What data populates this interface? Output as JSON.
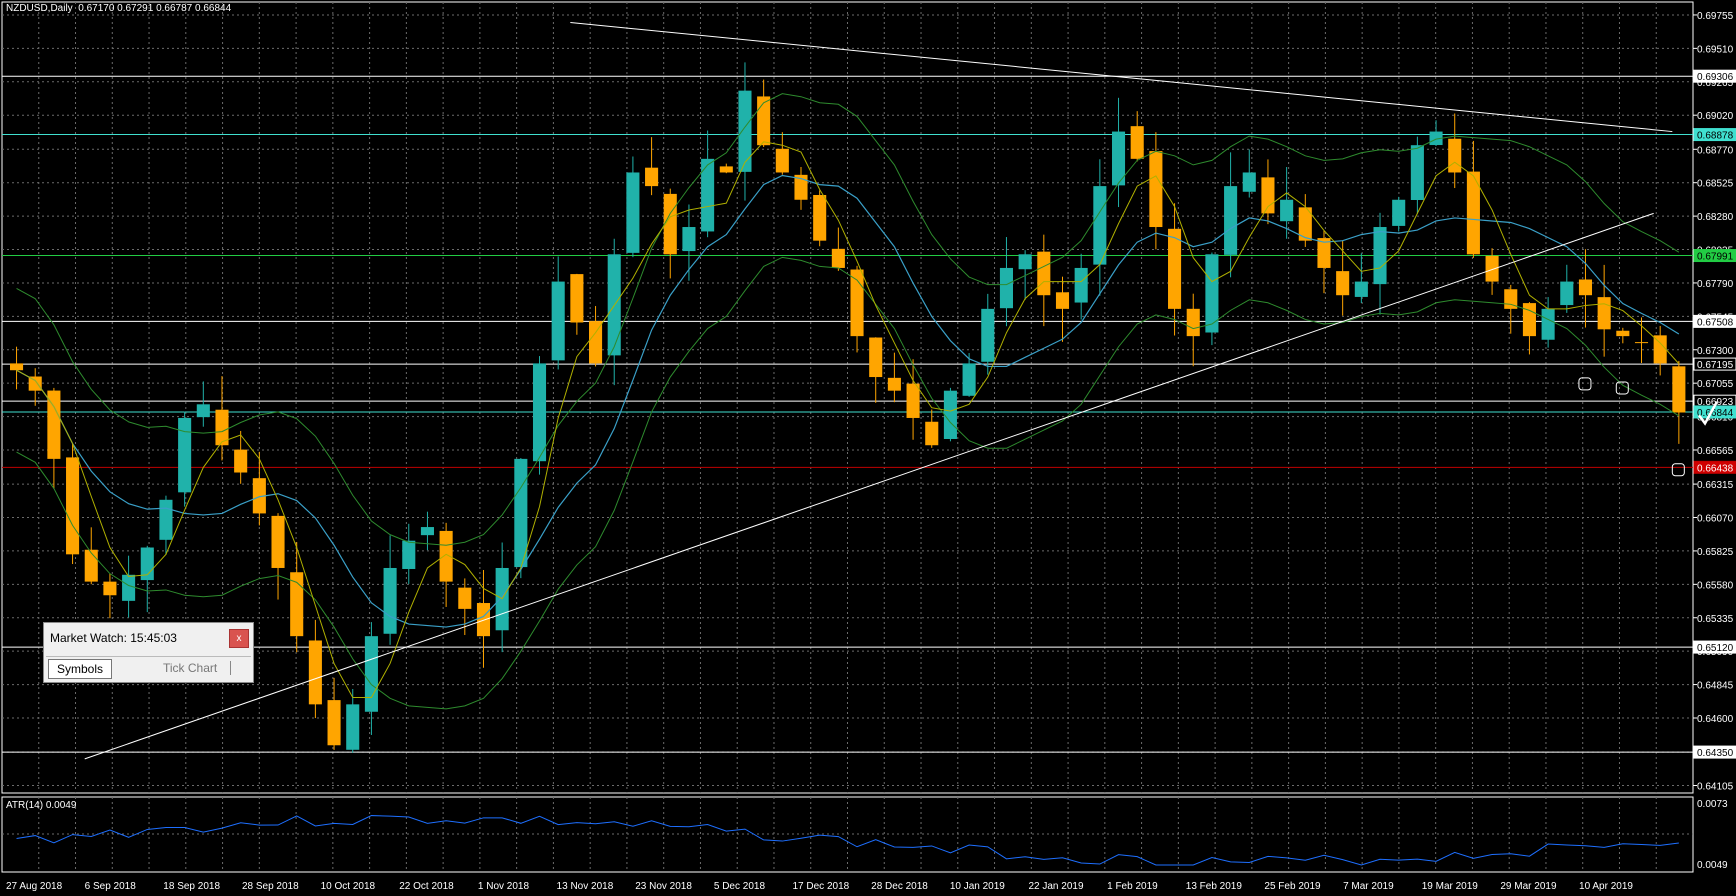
{
  "header": {
    "symbol": "NZDUSD,Daily",
    "ohlc": "0.67170 0.67291 0.66787 0.66844"
  },
  "price_axis": {
    "ticks": [
      "0.69755",
      "0.69510",
      "0.69265",
      "0.69020",
      "0.68770",
      "0.68525",
      "0.68280",
      "0.68035",
      "0.67790",
      "0.67545",
      "0.67300",
      "0.67055",
      "0.66810",
      "0.66565",
      "0.66315",
      "0.66070",
      "0.65825",
      "0.65580",
      "0.65335",
      "0.65090",
      "0.64845",
      "0.64600",
      "0.64350",
      "0.64105"
    ],
    "level_tags": [
      {
        "value": "0.69306",
        "price": 0.69306,
        "style": "white"
      },
      {
        "value": "0.68878",
        "price": 0.68878,
        "style": "aqua"
      },
      {
        "value": "0.67991",
        "price": 0.67991,
        "style": "green"
      },
      {
        "value": "0.67508",
        "price": 0.67508,
        "style": "white"
      },
      {
        "value": "0.67195",
        "price": 0.67195,
        "style": "plain"
      },
      {
        "value": "0.66923",
        "price": 0.66923,
        "style": "plain"
      },
      {
        "value": "0.66844",
        "price": 0.66844,
        "style": "aqua"
      },
      {
        "value": "0.66438",
        "price": 0.66438,
        "style": "red"
      },
      {
        "value": "0.65120",
        "price": 0.6512,
        "style": "white"
      },
      {
        "value": "0.64350",
        "price": 0.6435,
        "style": "white"
      }
    ]
  },
  "time_axis": {
    "labels": [
      "27 Aug 2018",
      "6 Sep 2018",
      "18 Sep 2018",
      "28 Sep 2018",
      "10 Oct 2018",
      "22 Oct 2018",
      "1 Nov 2018",
      "13 Nov 2018",
      "23 Nov 2018",
      "5 Dec 2018",
      "17 Dec 2018",
      "28 Dec 2018",
      "10 Jan 2019",
      "22 Jan 2019",
      "1 Feb 2019",
      "13 Feb 2019",
      "25 Feb 2019",
      "7 Mar 2019",
      "19 Mar 2019",
      "29 Mar 2019",
      "10 Apr 2019"
    ]
  },
  "indicator": {
    "label": "ATR(14) 0.0049",
    "axis_top": "0.0073",
    "axis_bottom": "0.0049"
  },
  "market_watch": {
    "title": "Market Watch: 15:45:03",
    "close": "x",
    "tabs": [
      "Symbols",
      "Tick Chart"
    ]
  },
  "colors": {
    "background": "#000000",
    "grid": "#6b6b6b",
    "bull": "#20b2aa",
    "bear": "#ffa500",
    "bollinger": "#2e8b2e",
    "ma_fast": "#b0b000",
    "ma_slow": "#1e90ff",
    "atr": "#1e6fff",
    "support_red": "#c00000"
  },
  "chart_data": {
    "type": "candlestick",
    "symbol": "NZDUSD",
    "timeframe": "Daily",
    "ylim": [
      0.6405,
      0.6985
    ],
    "last_ohlc": {
      "open": 0.6717,
      "high": 0.67291,
      "low": 0.66787,
      "close": 0.66844
    },
    "candles_close_path": [
      0.6715,
      0.67,
      0.665,
      0.658,
      0.656,
      0.655,
      0.6565,
      0.6585,
      0.662,
      0.668,
      0.669,
      0.666,
      0.664,
      0.661,
      0.657,
      0.652,
      0.647,
      0.644,
      0.647,
      0.652,
      0.657,
      0.659,
      0.66,
      0.656,
      0.654,
      0.652,
      0.657,
      0.665,
      0.672,
      0.678,
      0.675,
      0.672,
      0.68,
      0.686,
      0.685,
      0.68,
      0.682,
      0.687,
      0.686,
      0.692,
      0.688,
      0.686,
      0.684,
      0.681,
      0.679,
      0.674,
      0.671,
      0.67,
      0.668,
      0.666,
      0.67,
      0.672,
      0.676,
      0.679,
      0.68,
      0.677,
      0.676,
      0.679,
      0.685,
      0.689,
      0.687,
      0.682,
      0.676,
      0.674,
      0.68,
      0.685,
      0.686,
      0.683,
      0.684,
      0.681,
      0.679,
      0.677,
      0.678,
      0.682,
      0.684,
      0.688,
      0.689,
      0.686,
      0.68,
      0.678,
      0.676,
      0.674,
      0.676,
      0.678,
      0.677,
      0.6745,
      0.674,
      0.6735,
      0.672,
      0.6684
    ],
    "horizontal_levels": [
      0.69306,
      0.68878,
      0.67991,
      0.67508,
      0.67195,
      0.66923,
      0.66844,
      0.66438,
      0.6512,
      0.6435
    ],
    "trendlines": [
      {
        "from": [
          4,
          0.643
        ],
        "to": [
          88,
          0.683
        ]
      },
      {
        "from": [
          30,
          0.697
        ],
        "to": [
          89,
          0.689
        ]
      }
    ]
  }
}
